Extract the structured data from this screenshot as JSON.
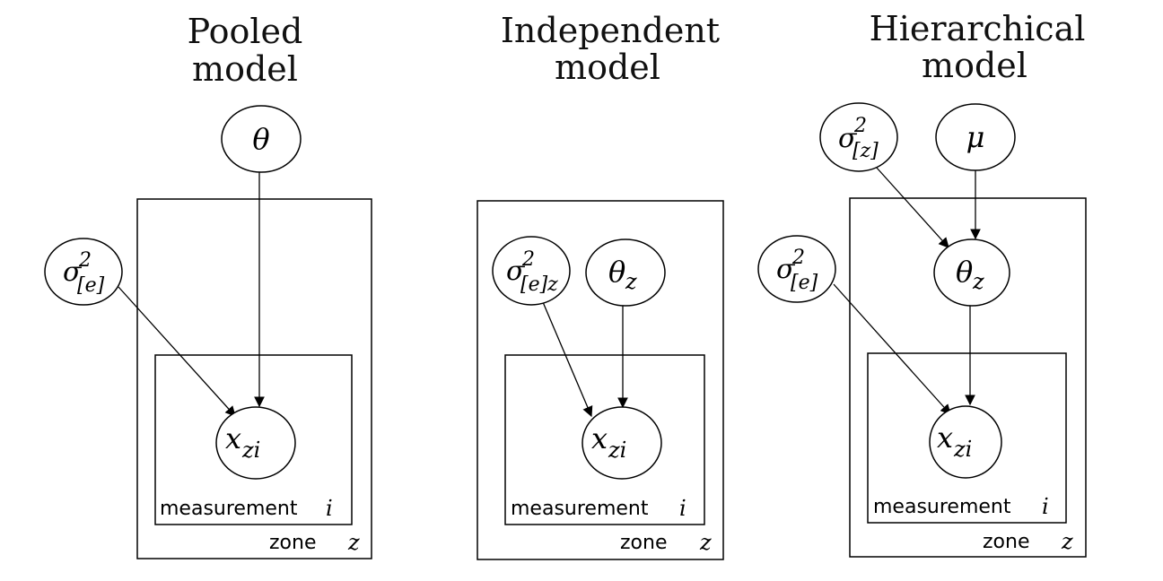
{
  "panels": [
    {
      "title_lines": [
        "Pooled",
        "model"
      ],
      "nodes": {
        "theta": {
          "symbol": "θ"
        },
        "sigma_e": {
          "symbol": "σ",
          "sup": "2",
          "sub": "[e]"
        },
        "x": {
          "symbol": "x",
          "sub": "zi"
        }
      },
      "inner_plate": {
        "label": "measurement",
        "var": "i"
      },
      "outer_plate": {
        "label": "zone",
        "var": "z"
      }
    },
    {
      "title_lines": [
        "Independent",
        "model"
      ],
      "nodes": {
        "sigma_ez": {
          "symbol": "σ",
          "sup": "2",
          "sub": "[e]z"
        },
        "theta_z": {
          "symbol": "θ",
          "sub": "z"
        },
        "x": {
          "symbol": "x",
          "sub": "zi"
        }
      },
      "inner_plate": {
        "label": "measurement",
        "var": "i"
      },
      "outer_plate": {
        "label": "zone",
        "var": "z"
      }
    },
    {
      "title_lines": [
        "Hierarchical",
        "model"
      ],
      "nodes": {
        "sigma_z": {
          "symbol": "σ",
          "sup": "2",
          "sub": "[z]"
        },
        "mu": {
          "symbol": "μ"
        },
        "theta_z": {
          "symbol": "θ",
          "sub": "z"
        },
        "sigma_e": {
          "symbol": "σ",
          "sup": "2",
          "sub": "[e]"
        },
        "x": {
          "symbol": "x",
          "sub": "zi"
        }
      },
      "inner_plate": {
        "label": "measurement",
        "var": "i"
      },
      "outer_plate": {
        "label": "zone",
        "var": "z"
      }
    }
  ]
}
